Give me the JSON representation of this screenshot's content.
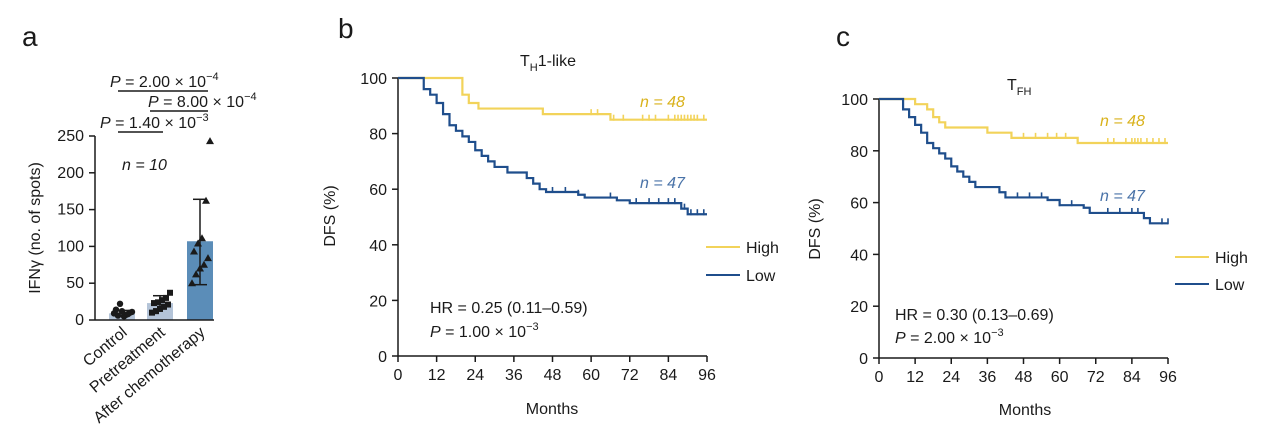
{
  "chart_data": [
    {
      "panel": "a",
      "type": "bar",
      "categories": [
        "Control",
        "Pretreatment",
        "After chemotherapy"
      ],
      "series": [
        {
          "values": [
            9,
            23,
            107
          ],
          "error_lower": [
            6,
            15,
            48
          ],
          "error_upper": [
            13,
            33,
            164
          ]
        }
      ],
      "points": [
        [
          9,
          6,
          12,
          7,
          10,
          14,
          22,
          5,
          8,
          11
        ],
        [
          10,
          12,
          15,
          18,
          21,
          23,
          24,
          27,
          30,
          37
        ],
        [
          50,
          62,
          70,
          75,
          84,
          93,
          104,
          111,
          162,
          243
        ]
      ],
      "ylabel": "IFNγ (no. of spots)",
      "ylim": [
        0,
        250
      ],
      "yticks": [
        "0",
        "50",
        "100",
        "150",
        "200",
        "250"
      ],
      "annotations": {
        "n": "n = 10",
        "p1": {
          "italic": "P",
          "rest": " = 2.00 × 10",
          "exp": "−4"
        },
        "p2": {
          "italic": "P",
          "rest": " = 8.00 × 10",
          "exp": "−4"
        },
        "p3": {
          "italic": "P",
          "rest": " = 1.40 × 10",
          "exp": "−3"
        }
      },
      "colors": {
        "control": "#b4c4d8",
        "pretreatment": "#b4c4d8",
        "after": "#5b8db8"
      }
    },
    {
      "panel": "b",
      "type": "line",
      "title": {
        "main": "T",
        "sub": "H",
        "rest": "1-like"
      },
      "xlabel": "Months",
      "ylabel": "DFS (%)",
      "xlim": [
        0,
        96
      ],
      "ylim": [
        0,
        100
      ],
      "xticks": [
        "0",
        "12",
        "24",
        "36",
        "48",
        "60",
        "72",
        "84",
        "96"
      ],
      "yticks": [
        "0",
        "20",
        "40",
        "60",
        "80",
        "100"
      ],
      "series": [
        {
          "name": "High",
          "color": "#f2d35a",
          "x": [
            0,
            11,
            20,
            22,
            25,
            45,
            66,
            96
          ],
          "y": [
            100,
            100,
            94,
            91,
            89,
            87,
            85,
            85
          ],
          "censor": [
            60,
            62,
            67,
            70,
            76,
            78,
            80,
            84,
            86,
            87,
            88,
            89,
            90,
            91,
            92,
            93,
            95
          ]
        },
        {
          "name": "Low",
          "color": "#1f4e8c",
          "x": [
            0,
            8,
            10,
            12,
            14,
            16,
            18,
            20,
            22,
            24,
            26,
            28,
            30,
            34,
            40,
            42,
            44,
            46,
            56,
            58,
            68,
            72,
            88,
            90,
            96
          ],
          "y": [
            100,
            96,
            94,
            91,
            87,
            83,
            81,
            79,
            77,
            74,
            72,
            70,
            68,
            66,
            64,
            62,
            60,
            59,
            58,
            57,
            56,
            55,
            53,
            51,
            51
          ],
          "censor": [
            48,
            52,
            56,
            66,
            74,
            78,
            81,
            84,
            86,
            89,
            91,
            93,
            95
          ]
        }
      ],
      "legend": {
        "position": "right",
        "entries": [
          "High",
          "Low"
        ]
      },
      "labels": {
        "n_high": "n = 48",
        "n_low": "n = 47"
      },
      "hr": "HR = 0.25 (0.11–0.59)",
      "p": {
        "italic": "P",
        "rest": " = 1.00 × 10",
        "exp": "−3"
      }
    },
    {
      "panel": "c",
      "type": "line",
      "title": {
        "main": "T",
        "sub": "FH"
      },
      "xlabel": "Months",
      "ylabel": "DFS (%)",
      "xlim": [
        0,
        96
      ],
      "ylim": [
        0,
        100
      ],
      "xticks": [
        "0",
        "12",
        "24",
        "36",
        "48",
        "60",
        "72",
        "84",
        "96"
      ],
      "yticks": [
        "0",
        "20",
        "40",
        "60",
        "80",
        "100"
      ],
      "series": [
        {
          "name": "High",
          "color": "#f2d35a",
          "x": [
            0,
            10,
            12,
            16,
            18,
            20,
            22,
            26,
            36,
            44,
            56,
            64,
            66,
            96
          ],
          "y": [
            100,
            100,
            98,
            96,
            93,
            91,
            89,
            89,
            87,
            85,
            85,
            85,
            83,
            83
          ],
          "censor": [
            48,
            52,
            56,
            59,
            62,
            66,
            76,
            78,
            82,
            84,
            85,
            86,
            87,
            89,
            91,
            93,
            95
          ]
        },
        {
          "name": "Low",
          "color": "#1f4e8c",
          "x": [
            0,
            8,
            10,
            12,
            14,
            16,
            18,
            20,
            22,
            24,
            26,
            28,
            30,
            32,
            34,
            40,
            42,
            56,
            60,
            68,
            70,
            88,
            90,
            96
          ],
          "y": [
            100,
            96,
            93,
            90,
            87,
            83,
            81,
            79,
            77,
            74,
            72,
            70,
            68,
            66,
            66,
            64,
            62,
            61,
            59,
            58,
            56,
            54,
            52,
            52
          ],
          "censor": [
            46,
            50,
            54,
            60,
            64,
            76,
            80,
            84,
            86,
            94,
            96
          ]
        }
      ],
      "legend": {
        "position": "right",
        "entries": [
          "High",
          "Low"
        ]
      },
      "labels": {
        "n_high": "n = 48",
        "n_low": "n = 47"
      },
      "hr": "HR = 0.30 (0.13–0.69)",
      "p": {
        "italic": "P",
        "rest": " = 2.00 × 10",
        "exp": "−3"
      }
    }
  ],
  "panels": [
    "a",
    "b",
    "c"
  ]
}
